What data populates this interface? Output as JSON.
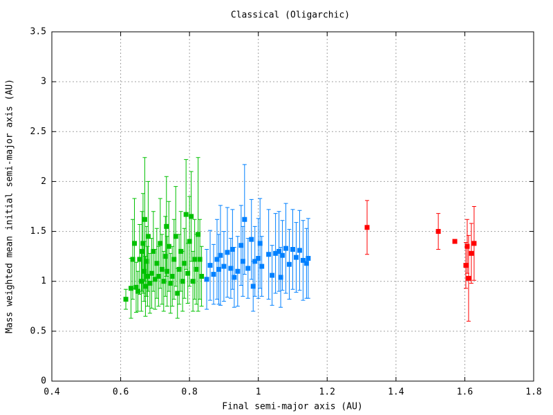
{
  "chart_data": {
    "type": "scatter",
    "title": "Classical (Oligarchic)",
    "xlabel": "Final semi-major axis (AU)",
    "ylabel": "Mass weighted mean initial semi-major axis (AU)",
    "xlim": [
      0.4,
      1.8
    ],
    "xticks": [
      0.4,
      0.6,
      0.8,
      1,
      1.2,
      1.4,
      1.6,
      1.8
    ],
    "ylim": [
      0,
      3.5
    ],
    "yticks": [
      0,
      0.5,
      1,
      1.5,
      2,
      2.5,
      3,
      3.5
    ],
    "grid": true,
    "series": [
      {
        "color": "#00c000",
        "x": [
          0.615,
          0.63,
          0.635,
          0.64,
          0.645,
          0.65,
          0.655,
          0.66,
          0.662,
          0.665,
          0.668,
          0.67,
          0.672,
          0.675,
          0.678,
          0.68,
          0.685,
          0.69,
          0.695,
          0.7,
          0.705,
          0.71,
          0.715,
          0.72,
          0.725,
          0.73,
          0.733,
          0.735,
          0.74,
          0.745,
          0.75,
          0.755,
          0.76,
          0.765,
          0.77,
          0.775,
          0.78,
          0.785,
          0.79,
          0.795,
          0.8,
          0.805,
          0.81,
          0.815,
          0.82,
          0.825,
          0.83,
          0.835
        ],
        "values": [
          0.82,
          0.93,
          1.22,
          1.38,
          0.94,
          0.9,
          1.22,
          1.0,
          1.3,
          1.38,
          1.1,
          1.62,
          0.95,
          1.2,
          1.05,
          1.45,
          0.98,
          1.08,
          1.3,
          1.02,
          1.18,
          1.05,
          1.38,
          1.12,
          1.0,
          1.25,
          1.55,
          1.1,
          1.35,
          0.98,
          1.05,
          1.22,
          1.45,
          0.88,
          1.12,
          1.3,
          1.0,
          1.18,
          1.67,
          1.08,
          1.4,
          1.65,
          1.0,
          1.22,
          1.12,
          1.47,
          1.22,
          1.05
        ],
        "errors": [
          0.1,
          0.3,
          0.4,
          0.45,
          0.25,
          0.2,
          0.35,
          0.3,
          0.4,
          0.5,
          0.3,
          0.62,
          0.3,
          0.35,
          0.3,
          0.55,
          0.3,
          0.35,
          0.4,
          0.3,
          0.35,
          0.3,
          0.45,
          0.35,
          0.3,
          0.4,
          0.5,
          0.35,
          0.45,
          0.3,
          0.3,
          0.4,
          0.5,
          0.25,
          0.35,
          0.4,
          0.3,
          0.35,
          0.55,
          0.3,
          0.45,
          0.45,
          0.3,
          0.4,
          0.35,
          0.77,
          0.4,
          0.3
        ]
      },
      {
        "color": "#0080ff",
        "x": [
          0.85,
          0.86,
          0.87,
          0.88,
          0.885,
          0.89,
          0.9,
          0.91,
          0.92,
          0.925,
          0.93,
          0.94,
          0.95,
          0.955,
          0.96,
          0.97,
          0.98,
          0.985,
          0.99,
          1.0,
          1.005,
          1.01,
          1.03,
          1.04,
          1.05,
          1.06,
          1.065,
          1.07,
          1.08,
          1.09,
          1.1,
          1.11,
          1.12,
          1.13,
          1.14,
          1.145
        ],
        "values": [
          1.02,
          1.16,
          1.07,
          1.22,
          1.12,
          1.26,
          1.15,
          1.29,
          1.13,
          1.32,
          1.04,
          1.1,
          1.36,
          1.2,
          1.62,
          1.13,
          1.42,
          0.95,
          1.2,
          1.23,
          1.38,
          1.15,
          1.27,
          1.06,
          1.28,
          1.3,
          1.04,
          1.26,
          1.33,
          1.17,
          1.32,
          1.24,
          1.31,
          1.21,
          1.18,
          1.23
        ],
        "errors": [
          0.3,
          0.35,
          0.3,
          0.4,
          0.35,
          0.5,
          0.35,
          0.45,
          0.3,
          0.4,
          0.3,
          0.35,
          0.4,
          0.35,
          0.55,
          0.3,
          0.4,
          0.25,
          0.35,
          0.4,
          0.45,
          0.3,
          0.45,
          0.3,
          0.4,
          0.4,
          0.3,
          0.35,
          0.45,
          0.35,
          0.4,
          0.35,
          0.4,
          0.4,
          0.35,
          0.4
        ]
      },
      {
        "color": "#ff0000",
        "x": [
          1.316,
          1.523,
          1.571,
          1.607,
          1.619,
          1.627,
          1.603,
          1.611
        ],
        "values": [
          1.54,
          1.5,
          1.4,
          1.35,
          1.28,
          1.38,
          1.16,
          1.03
        ],
        "errors": [
          0.27,
          0.18,
          0,
          0.27,
          0.3,
          0.37,
          0.23,
          0.43
        ]
      }
    ]
  }
}
